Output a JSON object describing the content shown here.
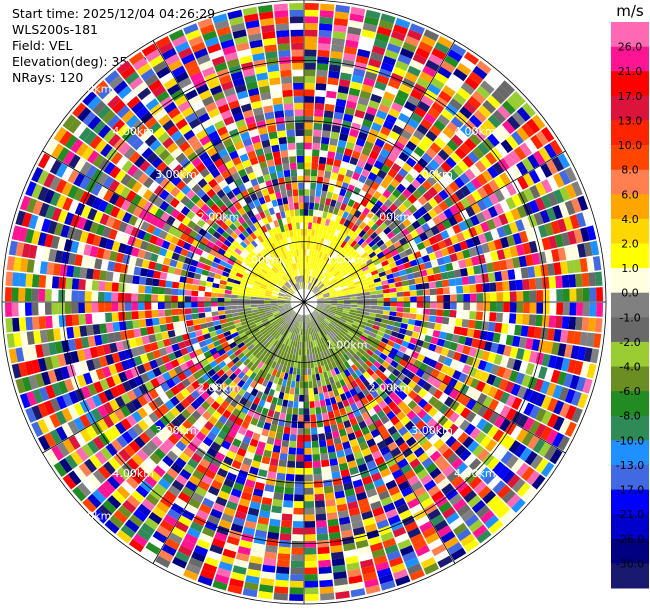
{
  "header": {
    "start_time": "Start time: 2025/12/04 04:26:29",
    "instrument": "WLS200s-181",
    "field": "Field: VEL",
    "elevation": "Elevation(deg): 35.00",
    "nrays": "NRays: 120"
  },
  "chart_data": {
    "type": "heatmap",
    "projection": "polar-ppi",
    "unit": "m/s",
    "max_range_km": 5.0,
    "range_rings_km": [
      1,
      2,
      3,
      4,
      5
    ],
    "ring_label_text": [
      "1.00km",
      "2.00km",
      "3.00km",
      "4.00km",
      "5.00km"
    ],
    "range_labels": [
      {
        "text": "1.00km",
        "ring_km": 1,
        "bearing_deg": 45
      },
      {
        "text": "2.00km",
        "ring_km": 2,
        "bearing_deg": 45
      },
      {
        "text": "3.00km",
        "ring_km": 3,
        "bearing_deg": 45
      },
      {
        "text": "4.00km",
        "ring_km": 4,
        "bearing_deg": 45
      },
      {
        "text": "1.00km",
        "ring_km": 1,
        "bearing_deg": 135
      },
      {
        "text": "2.00km",
        "ring_km": 2,
        "bearing_deg": 135
      },
      {
        "text": "3.00km",
        "ring_km": 3,
        "bearing_deg": 135
      },
      {
        "text": "4.00km",
        "ring_km": 4,
        "bearing_deg": 135
      },
      {
        "text": "2.00km",
        "ring_km": 2,
        "bearing_deg": 225
      },
      {
        "text": "3.00km",
        "ring_km": 3,
        "bearing_deg": 225
      },
      {
        "text": "4.00km",
        "ring_km": 4,
        "bearing_deg": 225
      },
      {
        "text": "5.00km",
        "ring_km": 5,
        "bearing_deg": 225
      },
      {
        "text": "1.00km",
        "ring_km": 1,
        "bearing_deg": 315
      },
      {
        "text": "2.00km",
        "ring_km": 2,
        "bearing_deg": 315
      },
      {
        "text": "3.00km",
        "ring_km": 3,
        "bearing_deg": 315
      },
      {
        "text": "4.00km",
        "ring_km": 4,
        "bearing_deg": 315
      },
      {
        "text": "5.00km",
        "ring_km": 5,
        "bearing_deg": 315
      }
    ],
    "n_rays": 120,
    "field": "VEL",
    "regions": [
      {
        "name": "",
        "bearing_from_deg": 275,
        "bearing_to_deg": 80,
        "range_km": [
          0.25,
          1.4
        ],
        "value": 3.0,
        "description": "receding flow (yellow), north sector"
      },
      {
        "name": "",
        "bearing_from_deg": 100,
        "bearing_to_deg": 260,
        "range_km": [
          0.25,
          1.4
        ],
        "value": -2.0,
        "description": "approaching flow (olive green), south sector"
      },
      {
        "name": "",
        "range_km": [
          1.4,
          5.0
        ],
        "value": "noise",
        "description": "random speckle beyond valid range"
      }
    ],
    "colorbar": {
      "unit_label": "m/s",
      "tick_labels": [
        "26.0",
        "21.0",
        "17.0",
        "13.0",
        "10.0",
        "8.0",
        "6.0",
        "4.0",
        "2.0",
        "1.0",
        "0.0",
        "-1.0",
        "-2.0",
        "-4.0",
        "-6.0",
        "-8.0",
        "-10.0",
        "-13.0",
        "-17.0",
        "-21.0",
        "-26.0",
        "-30.0"
      ],
      "colors": [
        "#ff1493",
        "#ff0000",
        "#dc143c",
        "#ff2400",
        "#ff4500",
        "#ff7f50",
        "#ffa500",
        "#ffd700",
        "#ffff00",
        "#ffffe0",
        "#808080",
        "#696969",
        "#9acd32",
        "#6b8e23",
        "#228b22",
        "#2e8b57",
        "#1e90ff",
        "#4169e1",
        "#0000ff",
        "#0000cd",
        "#000080",
        "#191970"
      ],
      "top_color": "#ff69b4"
    }
  }
}
